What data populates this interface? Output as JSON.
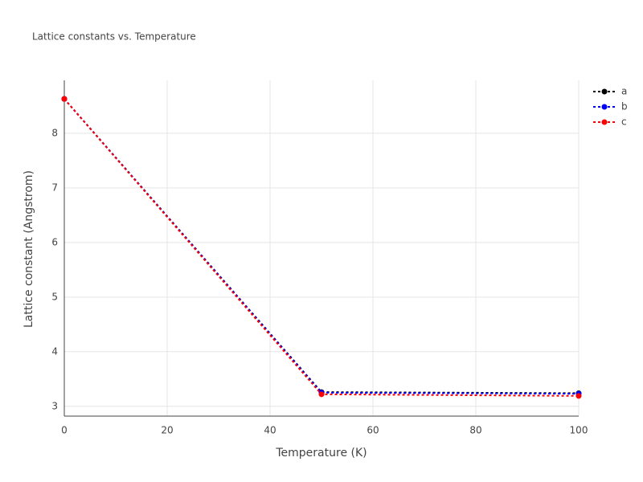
{
  "chart_data": {
    "type": "line",
    "title": "Lattice constants vs. Temperature",
    "x_label": "Temperature (K)",
    "y_label": "Lattice constant (Angstrom)",
    "x": [
      0,
      50,
      100
    ],
    "series": [
      {
        "name": "a",
        "color": "#000000",
        "values": [
          8.63,
          3.26,
          3.24
        ]
      },
      {
        "name": "b",
        "color": "#0000ff",
        "values": [
          8.63,
          3.25,
          3.23
        ]
      },
      {
        "name": "c",
        "color": "#ff0000",
        "values": [
          8.63,
          3.22,
          3.19
        ]
      }
    ],
    "xlim": [
      0,
      100
    ],
    "xticks": [
      0,
      20,
      40,
      60,
      80,
      100
    ],
    "ylim": [
      2.82,
      8.97
    ],
    "yticks": [
      3,
      4,
      5,
      6,
      7,
      8
    ],
    "grid": true,
    "legend": "right"
  }
}
